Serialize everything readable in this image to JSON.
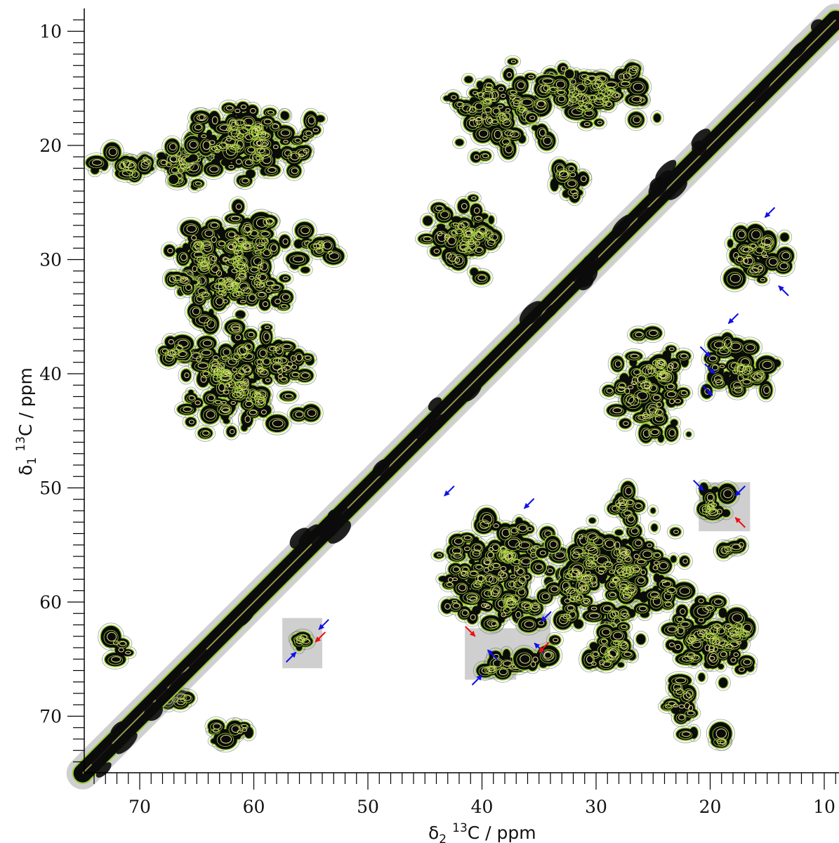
{
  "chart_data": {
    "type": "heatmap",
    "subtype": "2D 13C-13C NMR correlation contour spectrum",
    "x_axis": {
      "label_prefix": "δ",
      "label_subscript": "2",
      "label_sup": "13",
      "label_rest": "C / ppm",
      "range": [
        75,
        9
      ],
      "reversed": true,
      "major_ticks": [
        70,
        60,
        50,
        40,
        30,
        20,
        10
      ],
      "tick_labels": [
        "70",
        "60",
        "50",
        "40",
        "30",
        "20",
        "10"
      ]
    },
    "y_axis": {
      "label_prefix": "δ",
      "label_subscript": "1",
      "label_sup": "13",
      "label_rest": "C / ppm",
      "range": [
        8,
        75
      ],
      "reversed": true,
      "major_ticks": [
        10,
        20,
        30,
        40,
        50,
        60,
        70
      ],
      "tick_labels": [
        "10",
        "20",
        "30",
        "40",
        "50",
        "60",
        "70"
      ]
    },
    "diagonal": [
      [
        75,
        75
      ],
      [
        9,
        9
      ]
    ],
    "contour_colors": {
      "main": "#0b0b0b",
      "outer": "#9acd32",
      "inner": "#e8e08a",
      "faint": "#777777"
    },
    "clusters": [
      {
        "x": 71.5,
        "y": 21.8,
        "sx": 2.2,
        "sy": 0.8
      },
      {
        "x": 66.0,
        "y": 21.5,
        "sx": 2.3,
        "sy": 1.6
      },
      {
        "x": 60.0,
        "y": 19.5,
        "sx": 5.0,
        "sy": 2.6
      },
      {
        "x": 61.5,
        "y": 30.5,
        "sx": 4.6,
        "sy": 3.8
      },
      {
        "x": 66.5,
        "y": 32.0,
        "sx": 1.3,
        "sy": 0.6
      },
      {
        "x": 60.5,
        "y": 40.5,
        "sx": 4.4,
        "sy": 3.6
      },
      {
        "x": 67.0,
        "y": 38.0,
        "sx": 1.5,
        "sy": 0.8
      },
      {
        "x": 53.5,
        "y": 29.0,
        "sx": 0.9,
        "sy": 1.1
      },
      {
        "x": 38.5,
        "y": 17.0,
        "sx": 3.2,
        "sy": 2.8
      },
      {
        "x": 30.0,
        "y": 15.5,
        "sx": 3.8,
        "sy": 2.0
      },
      {
        "x": 32.5,
        "y": 23.0,
        "sx": 1.4,
        "sy": 1.4
      },
      {
        "x": 41.5,
        "y": 28.0,
        "sx": 2.8,
        "sy": 2.6
      },
      {
        "x": 25.0,
        "y": 41.5,
        "sx": 2.6,
        "sy": 3.6
      },
      {
        "x": 16.0,
        "y": 29.5,
        "sx": 2.0,
        "sy": 2.0
      },
      {
        "x": 17.5,
        "y": 39.5,
        "sx": 2.2,
        "sy": 2.2
      },
      {
        "x": 38.5,
        "y": 57.5,
        "sx": 4.2,
        "sy": 3.6
      },
      {
        "x": 29.0,
        "y": 58.0,
        "sx": 4.8,
        "sy": 3.8
      },
      {
        "x": 19.5,
        "y": 51.5,
        "sx": 1.0,
        "sy": 1.4
      },
      {
        "x": 18.0,
        "y": 55.5,
        "sx": 0.8,
        "sy": 0.9
      },
      {
        "x": 20.0,
        "y": 63.0,
        "sx": 2.8,
        "sy": 3.0
      },
      {
        "x": 22.5,
        "y": 69.0,
        "sx": 0.9,
        "sy": 2.3
      },
      {
        "x": 38.5,
        "y": 65.5,
        "sx": 1.4,
        "sy": 1.2
      },
      {
        "x": 35.5,
        "y": 65.0,
        "sx": 1.0,
        "sy": 0.8
      },
      {
        "x": 28.5,
        "y": 64.0,
        "sx": 2.0,
        "sy": 1.6
      },
      {
        "x": 27.0,
        "y": 51.5,
        "sx": 1.6,
        "sy": 0.9
      },
      {
        "x": 55.5,
        "y": 63.5,
        "sx": 0.8,
        "sy": 0.6
      },
      {
        "x": 62.0,
        "y": 71.5,
        "sx": 1.8,
        "sy": 0.9
      },
      {
        "x": 72.0,
        "y": 64.0,
        "sx": 0.8,
        "sy": 1.0
      },
      {
        "x": 67.0,
        "y": 68.5,
        "sx": 1.4,
        "sy": 0.5
      },
      {
        "x": 19.0,
        "y": 72.0,
        "sx": 0.4,
        "sy": 0.5
      },
      {
        "x": 33.5,
        "y": 15.0,
        "sx": 1.2,
        "sy": 1.2
      }
    ],
    "highlight_boxes": [
      {
        "x0": 57.5,
        "x1": 54.0,
        "y0": 61.4,
        "y1": 65.8
      },
      {
        "x0": 41.5,
        "x1": 37.0,
        "y0": 62.3,
        "y1": 66.8
      },
      {
        "x0": 37.0,
        "x1": 34.0,
        "y0": 61.0,
        "y1": 65.3
      },
      {
        "x0": 21.0,
        "x1": 16.5,
        "y0": 49.5,
        "y1": 53.8
      }
    ],
    "arrows": [
      {
        "color": "blue",
        "x": 15.2,
        "y": 26.3,
        "dir": "down-left"
      },
      {
        "color": "blue",
        "x": 14.0,
        "y": 32.3,
        "dir": "up-left"
      },
      {
        "color": "blue",
        "x": 18.4,
        "y": 35.6,
        "dir": "down-left"
      },
      {
        "color": "blue",
        "x": 20.0,
        "y": 38.5,
        "dir": "down-right"
      },
      {
        "color": "blue",
        "x": 19.6,
        "y": 40.0,
        "dir": "down-right"
      },
      {
        "color": "blue",
        "x": 19.8,
        "y": 41.9,
        "dir": "down-right"
      },
      {
        "color": "blue",
        "x": 43.3,
        "y": 50.7,
        "dir": "down-left"
      },
      {
        "color": "blue",
        "x": 36.3,
        "y": 51.8,
        "dir": "down-left"
      },
      {
        "color": "blue",
        "x": 20.6,
        "y": 50.2,
        "dir": "down-right"
      },
      {
        "color": "blue",
        "x": 17.8,
        "y": 50.7,
        "dir": "down-left"
      },
      {
        "color": "red",
        "x": 17.8,
        "y": 52.6,
        "dir": "up-left"
      },
      {
        "color": "blue",
        "x": 54.3,
        "y": 62.4,
        "dir": "down-left"
      },
      {
        "color": "red",
        "x": 54.6,
        "y": 63.5,
        "dir": "down-left"
      },
      {
        "color": "blue",
        "x": 56.3,
        "y": 64.4,
        "dir": "up-right"
      },
      {
        "color": "red",
        "x": 40.6,
        "y": 63.0,
        "dir": "down-right"
      },
      {
        "color": "blue",
        "x": 39.5,
        "y": 64.2,
        "dir": "up-left"
      },
      {
        "color": "blue",
        "x": 40.0,
        "y": 66.4,
        "dir": "up-right"
      },
      {
        "color": "blue",
        "x": 34.8,
        "y": 61.7,
        "dir": "down-left"
      },
      {
        "color": "blue",
        "x": 35.4,
        "y": 63.6,
        "dir": "up-left"
      },
      {
        "color": "red",
        "x": 35.0,
        "y": 64.4,
        "dir": "down-left"
      }
    ]
  }
}
